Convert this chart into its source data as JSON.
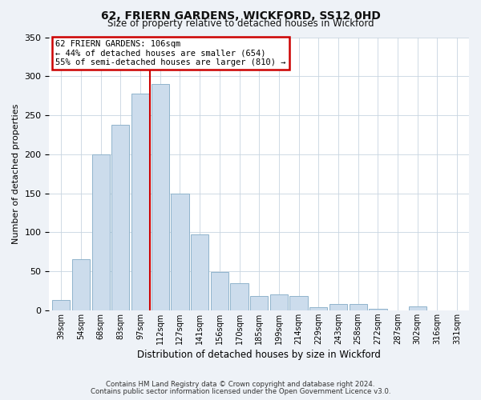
{
  "title": "62, FRIERN GARDENS, WICKFORD, SS12 0HD",
  "subtitle": "Size of property relative to detached houses in Wickford",
  "xlabel": "Distribution of detached houses by size in Wickford",
  "ylabel": "Number of detached properties",
  "bar_labels": [
    "39sqm",
    "54sqm",
    "68sqm",
    "83sqm",
    "97sqm",
    "112sqm",
    "127sqm",
    "141sqm",
    "156sqm",
    "170sqm",
    "185sqm",
    "199sqm",
    "214sqm",
    "229sqm",
    "243sqm",
    "258sqm",
    "272sqm",
    "287sqm",
    "302sqm",
    "316sqm",
    "331sqm"
  ],
  "bar_heights": [
    13,
    65,
    200,
    238,
    278,
    290,
    150,
    97,
    49,
    35,
    18,
    20,
    18,
    4,
    8,
    8,
    2,
    0,
    5,
    0,
    0
  ],
  "bar_color": "#ccdcec",
  "bar_edgecolor": "#90b4cc",
  "ylim": [
    0,
    350
  ],
  "yticks": [
    0,
    50,
    100,
    150,
    200,
    250,
    300,
    350
  ],
  "vline_index": 5,
  "vline_color": "#cc0000",
  "annotation_title": "62 FRIERN GARDENS: 106sqm",
  "annotation_line1": "← 44% of detached houses are smaller (654)",
  "annotation_line2": "55% of semi-detached houses are larger (810) →",
  "annotation_box_edgecolor": "#cc0000",
  "footer1": "Contains HM Land Registry data © Crown copyright and database right 2024.",
  "footer2": "Contains public sector information licensed under the Open Government Licence v3.0.",
  "bg_color": "#eef2f7",
  "plot_bg_color": "#ffffff",
  "grid_color": "#c8d4e0"
}
